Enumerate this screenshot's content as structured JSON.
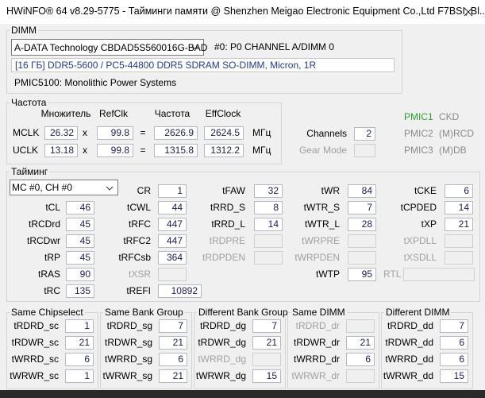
{
  "title": "HWiNFO® 64 v8.29-5775 - Тайминги памяти @ Shenzhen Meigao Electronic Equipment Co.,Ltd F7BSI, Bl...",
  "dimm": {
    "label": "DIMM",
    "module": "A-DATA Technology CBDAD5S560016G-BAD",
    "slot": "#0: P0 CHANNEL A/DIMM 0",
    "info": "[16 ГБ] DDR5-5600 / PC5-44800 DDR5 SDRAM SO-DIMM, Micron, 1R",
    "pmic": "PMIC5100: Monolithic Power Systems"
  },
  "frequency": {
    "label": "Частота",
    "headers": [
      "Множитель",
      "RefClk",
      "Частота",
      "EffClock"
    ],
    "rows": [
      {
        "name": "MCLK",
        "multiplier": "26.32",
        "times": "x",
        "refclk": "99.8",
        "equals": "=",
        "frequency": "2626.9",
        "effclock": "2624.5",
        "unit": "МГц"
      },
      {
        "name": "UCLK",
        "multiplier": "13.18",
        "times": "x",
        "refclk": "99.8",
        "equals": "=",
        "frequency": "1315.8",
        "effclock": "1312.2",
        "unit": "МГц"
      }
    ]
  },
  "channels": {
    "label": "Channels",
    "value": "2"
  },
  "gear_mode": {
    "label": "Gear Mode"
  },
  "pmic_list": [
    {
      "name": "PMIC1",
      "type": "CKD"
    },
    {
      "name": "PMIC2",
      "type": "(M)RCD"
    },
    {
      "name": "PMIC3",
      "type": "(M)DB"
    }
  ],
  "timings": {
    "label": "Тайминг",
    "selector": "MC #0, CH #0",
    "rows": [
      [
        null,
        {
          "label": "CR",
          "value": "1"
        },
        {
          "label": "tFAW",
          "value": "32"
        },
        {
          "label": "tWR",
          "value": "84"
        },
        {
          "label": "tCKE",
          "value": "6"
        }
      ],
      [
        {
          "label": "tCL",
          "value": "46"
        },
        {
          "label": "tCWL",
          "value": "44"
        },
        {
          "label": "tRRD_S",
          "value": "8"
        },
        {
          "label": "tWTR_S",
          "value": "7"
        },
        {
          "label": "tCPDED",
          "value": "14"
        }
      ],
      [
        {
          "label": "tRCDrd",
          "value": "45"
        },
        {
          "label": "tRFC",
          "value": "447"
        },
        {
          "label": "tRRD_L",
          "value": "14"
        },
        {
          "label": "tWTR_L",
          "value": "28"
        },
        {
          "label": "tXP",
          "value": "21"
        }
      ],
      [
        {
          "label": "tRCDwr",
          "value": "45"
        },
        {
          "label": "tRFC2",
          "value": "447"
        },
        {
          "label": "tRDPRE"
        },
        {
          "label": "tWRPRE"
        },
        {
          "label": "tXPDLL"
        }
      ],
      [
        {
          "label": "tRP",
          "value": "45"
        },
        {
          "label": "tRFCsb",
          "value": "364"
        },
        {
          "label": "tRDPDEN"
        },
        {
          "label": "tWRPDEN"
        },
        {
          "label": "tXSDLL"
        }
      ],
      [
        {
          "label": "tRAS",
          "value": "90"
        },
        {
          "label": "tXSR"
        },
        null,
        {
          "label": "tWTP",
          "value": "95"
        },
        {
          "label": "RTL"
        }
      ],
      [
        {
          "label": "tRC",
          "value": "135"
        },
        {
          "label": "tREFI",
          "value": "10892"
        }
      ]
    ]
  },
  "groups": [
    {
      "title": "Same Chipselect",
      "items": [
        {
          "label": "tRDRD_sc",
          "value": "1"
        },
        {
          "label": "tRDWR_sc",
          "value": "21"
        },
        {
          "label": "tWRRD_sc",
          "value": "6"
        },
        {
          "label": "tWRWR_sc",
          "value": "1"
        }
      ]
    },
    {
      "title": "Same Bank Group",
      "items": [
        {
          "label": "tRDRD_sg",
          "value": "7"
        },
        {
          "label": "tRDWR_sg",
          "value": "21"
        },
        {
          "label": "tWRRD_sg",
          "value": "6"
        },
        {
          "label": "tWRWR_sg",
          "value": "21"
        }
      ]
    },
    {
      "title": "Different Bank Group",
      "items": [
        {
          "label": "tRDRD_dg",
          "value": "7"
        },
        {
          "label": "tRDWR_dg",
          "value": "21"
        },
        {
          "label": "tWRRD_dg"
        },
        {
          "label": "tWRWR_dg",
          "value": "15"
        }
      ]
    },
    {
      "title": "Same DIMM",
      "items": [
        {
          "label": "tRDRD_dr"
        },
        {
          "label": "tRDWR_dr",
          "value": "21"
        },
        {
          "label": "tWRRD_dr",
          "value": "6"
        },
        {
          "label": "tWRWR_dr"
        }
      ]
    },
    {
      "title": "Different DIMM",
      "items": [
        {
          "label": "tRDRD_dd",
          "value": "7"
        },
        {
          "label": "tRDWR_dd",
          "value": "6"
        },
        {
          "label": "tWRRD_dd",
          "value": "6"
        },
        {
          "label": "tWRWR_dd",
          "value": "15"
        }
      ]
    }
  ]
}
